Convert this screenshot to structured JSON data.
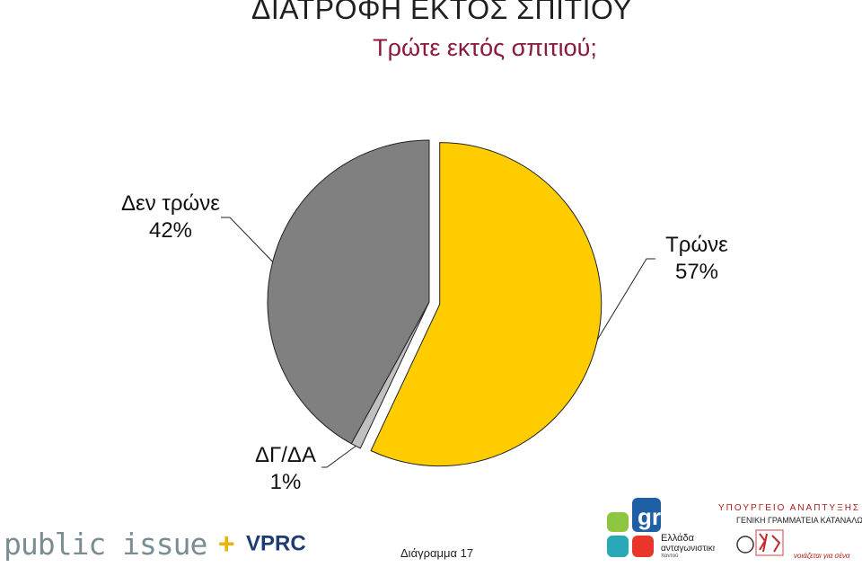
{
  "header": {
    "title": "ΔΙΑΤΡΟΦΗ ΕΚΤΟΣ ΣΠΙΤΙΟΥ",
    "subtitle": "Τρώτε εκτός σπιτιού;"
  },
  "chart_data": {
    "type": "pie",
    "title": "Τρώτε εκτός σπιτιού;",
    "slices": [
      {
        "label": "Τρώνε",
        "value": 57,
        "value_label": "57%",
        "color": "#ffcc00"
      },
      {
        "label": "ΔΓ/ΔΑ",
        "value": 1,
        "value_label": "1%",
        "color": "#c0c0c0"
      },
      {
        "label": "Δεν τρώνε",
        "value": 42,
        "value_label": "42%",
        "color": "#808080"
      }
    ],
    "exploded": [
      "Τρώνε"
    ],
    "legend": "none"
  },
  "footer": {
    "brand_left": "public issue",
    "brand_plus": "+",
    "brand_vprc": "VPRC",
    "diagram_label": "Διάγραμμα 17",
    "gr_logo": {
      "line1": "Ελλάδα",
      "line2": "ανταγωνιστική",
      "line3": "παντού"
    },
    "ministry_logo": {
      "line1": "ΥΠΟΥΡΓΕΙΟ ΑΝΑΠΤΥΞΗΣ",
      "line2": "ΓΕΝΙΚΗ ΓΡΑΜΜΑΤΕΙΑ ΚΑΤΑΝΑΛΩΤΗ",
      "line3": "νοιάζεται για σένα"
    }
  },
  "colors": {
    "title": "#1f1f1f",
    "subtitle": "#8b1a3a",
    "yes": "#ffcc00",
    "no": "#808080",
    "dk": "#c0c0c0"
  }
}
